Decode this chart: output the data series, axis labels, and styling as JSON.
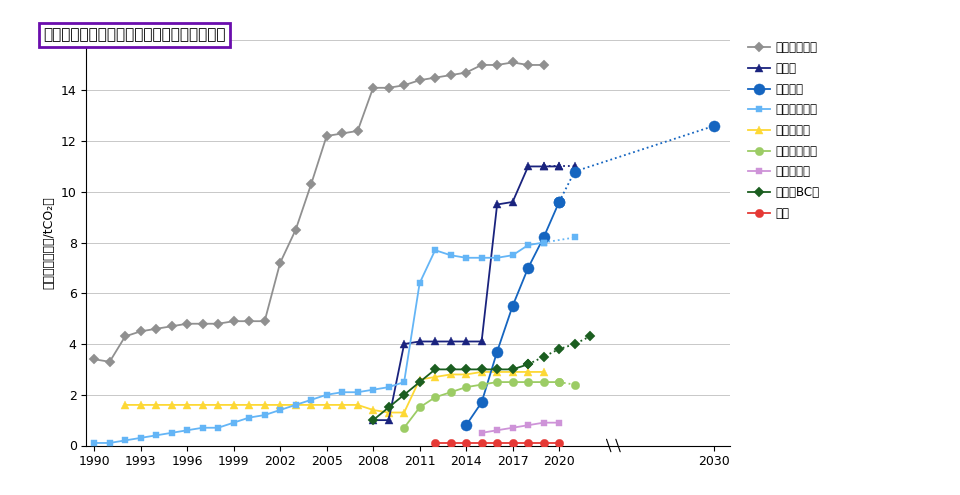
{
  "title": "主な炭素税導入国の税率推移及び将来見通し",
  "ylabel": "炭素税率（千円/tCO₂）",
  "xlabel_years": [
    1990,
    1993,
    1996,
    1999,
    2002,
    2005,
    2008,
    2011,
    2014,
    2017,
    2020,
    2030
  ],
  "ylim": [
    0,
    16
  ],
  "xlim": [
    1989.5,
    2031
  ],
  "sweden": {
    "label": "スウェーデン",
    "color": "#909090",
    "marker": "D",
    "linestyle": "-",
    "markersize": 5,
    "data": [
      [
        1990,
        3.4
      ],
      [
        1991,
        3.3
      ],
      [
        1992,
        4.3
      ],
      [
        1993,
        4.5
      ],
      [
        1994,
        4.6
      ],
      [
        1995,
        4.7
      ],
      [
        1996,
        4.8
      ],
      [
        1997,
        4.8
      ],
      [
        1998,
        4.8
      ],
      [
        1999,
        4.9
      ],
      [
        2000,
        4.9
      ],
      [
        2001,
        4.9
      ],
      [
        2002,
        7.2
      ],
      [
        2003,
        8.5
      ],
      [
        2004,
        10.3
      ],
      [
        2005,
        12.2
      ],
      [
        2006,
        12.3
      ],
      [
        2007,
        12.4
      ],
      [
        2008,
        14.1
      ],
      [
        2009,
        14.1
      ],
      [
        2010,
        14.2
      ],
      [
        2011,
        14.4
      ],
      [
        2012,
        14.5
      ],
      [
        2013,
        14.6
      ],
      [
        2014,
        14.7
      ],
      [
        2015,
        15.0
      ],
      [
        2016,
        15.0
      ],
      [
        2017,
        15.1
      ],
      [
        2018,
        15.0
      ],
      [
        2019,
        15.0
      ]
    ]
  },
  "switzerland": {
    "label": "スイス",
    "color": "#1a237e",
    "marker": "^",
    "linestyle": "-",
    "markersize": 6,
    "data": [
      [
        2008,
        1.0
      ],
      [
        2009,
        1.0
      ],
      [
        2010,
        4.0
      ],
      [
        2011,
        4.1
      ],
      [
        2012,
        4.1
      ],
      [
        2013,
        4.1
      ],
      [
        2014,
        4.1
      ],
      [
        2015,
        4.1
      ],
      [
        2016,
        9.5
      ],
      [
        2017,
        9.6
      ],
      [
        2018,
        11.0
      ],
      [
        2019,
        11.0
      ],
      [
        2020,
        11.0
      ]
    ]
  },
  "switzerland_proj": {
    "color": "#1a237e",
    "marker": "^",
    "linestyle": ":",
    "markersize": 6,
    "data": [
      [
        2019,
        11.0
      ],
      [
        2020,
        11.0
      ],
      [
        2021,
        11.0
      ]
    ]
  },
  "france": {
    "label": "フランス",
    "color": "#1565c0",
    "marker": "o",
    "linestyle": "-",
    "markersize": 8,
    "data": [
      [
        2014,
        0.8
      ],
      [
        2015,
        1.7
      ],
      [
        2016,
        3.7
      ],
      [
        2017,
        5.5
      ],
      [
        2018,
        7.0
      ],
      [
        2019,
        8.2
      ],
      [
        2020,
        9.6
      ]
    ]
  },
  "france_proj": {
    "color": "#1565c0",
    "marker": "o",
    "linestyle": ":",
    "markersize": 8,
    "data": [
      [
        2020,
        9.6
      ],
      [
        2021,
        10.8
      ],
      [
        2030,
        12.6
      ]
    ]
  },
  "finland": {
    "label": "フィンランド",
    "color": "#64b5f6",
    "marker": "s",
    "linestyle": "-",
    "markersize": 5,
    "data": [
      [
        1990,
        0.1
      ],
      [
        1991,
        0.1
      ],
      [
        1992,
        0.2
      ],
      [
        1993,
        0.3
      ],
      [
        1994,
        0.4
      ],
      [
        1995,
        0.5
      ],
      [
        1996,
        0.6
      ],
      [
        1997,
        0.7
      ],
      [
        1998,
        0.7
      ],
      [
        1999,
        0.9
      ],
      [
        2000,
        1.1
      ],
      [
        2001,
        1.2
      ],
      [
        2002,
        1.4
      ],
      [
        2003,
        1.6
      ],
      [
        2004,
        1.8
      ],
      [
        2005,
        2.0
      ],
      [
        2006,
        2.1
      ],
      [
        2007,
        2.1
      ],
      [
        2008,
        2.2
      ],
      [
        2009,
        2.3
      ],
      [
        2010,
        2.5
      ],
      [
        2011,
        6.4
      ],
      [
        2012,
        7.7
      ],
      [
        2013,
        7.5
      ],
      [
        2014,
        7.4
      ],
      [
        2015,
        7.4
      ],
      [
        2016,
        7.4
      ],
      [
        2017,
        7.5
      ],
      [
        2018,
        7.9
      ],
      [
        2019,
        8.0
      ]
    ]
  },
  "finland_proj": {
    "color": "#64b5f6",
    "marker": "s",
    "linestyle": ":",
    "markersize": 5,
    "data": [
      [
        2019,
        8.0
      ],
      [
        2021,
        8.2
      ]
    ]
  },
  "denmark": {
    "label": "デンマーク",
    "color": "#fdd835",
    "marker": "^",
    "linestyle": "-",
    "markersize": 6,
    "data": [
      [
        1992,
        1.6
      ],
      [
        1993,
        1.6
      ],
      [
        1994,
        1.6
      ],
      [
        1995,
        1.6
      ],
      [
        1996,
        1.6
      ],
      [
        1997,
        1.6
      ],
      [
        1998,
        1.6
      ],
      [
        1999,
        1.6
      ],
      [
        2000,
        1.6
      ],
      [
        2001,
        1.6
      ],
      [
        2002,
        1.6
      ],
      [
        2003,
        1.6
      ],
      [
        2004,
        1.6
      ],
      [
        2005,
        1.6
      ],
      [
        2006,
        1.6
      ],
      [
        2007,
        1.6
      ],
      [
        2008,
        1.4
      ],
      [
        2009,
        1.3
      ],
      [
        2010,
        1.3
      ],
      [
        2011,
        2.6
      ],
      [
        2012,
        2.7
      ],
      [
        2013,
        2.8
      ],
      [
        2014,
        2.8
      ],
      [
        2015,
        2.9
      ],
      [
        2016,
        2.9
      ],
      [
        2017,
        2.9
      ],
      [
        2018,
        2.9
      ],
      [
        2019,
        2.9
      ]
    ]
  },
  "ireland": {
    "label": "アイルランド",
    "color": "#9ccc65",
    "marker": "o",
    "linestyle": "-",
    "markersize": 6,
    "data": [
      [
        2010,
        0.7
      ],
      [
        2011,
        1.5
      ],
      [
        2012,
        1.9
      ],
      [
        2013,
        2.1
      ],
      [
        2014,
        2.3
      ],
      [
        2015,
        2.4
      ],
      [
        2016,
        2.5
      ],
      [
        2017,
        2.5
      ],
      [
        2018,
        2.5
      ],
      [
        2019,
        2.5
      ],
      [
        2020,
        2.5
      ]
    ]
  },
  "ireland_proj": {
    "color": "#9ccc65",
    "marker": "o",
    "linestyle": ":",
    "markersize": 6,
    "data": [
      [
        2020,
        2.5
      ],
      [
        2021,
        2.4
      ]
    ]
  },
  "portugal": {
    "label": "ポルトガル",
    "color": "#ce93d8",
    "marker": "s",
    "linestyle": "-",
    "markersize": 5,
    "data": [
      [
        2015,
        0.5
      ],
      [
        2016,
        0.6
      ],
      [
        2017,
        0.7
      ],
      [
        2018,
        0.8
      ],
      [
        2019,
        0.9
      ],
      [
        2020,
        0.9
      ]
    ]
  },
  "canada_bc": {
    "label": "カナダBC州",
    "color": "#1b5e20",
    "marker": "D",
    "linestyle": "-",
    "markersize": 5,
    "data": [
      [
        2008,
        1.0
      ],
      [
        2009,
        1.5
      ],
      [
        2010,
        2.0
      ],
      [
        2011,
        2.5
      ],
      [
        2012,
        3.0
      ],
      [
        2013,
        3.0
      ],
      [
        2014,
        3.0
      ],
      [
        2015,
        3.0
      ],
      [
        2016,
        3.0
      ],
      [
        2017,
        3.0
      ],
      [
        2018,
        3.2
      ]
    ]
  },
  "canada_bc_proj": {
    "color": "#1b5e20",
    "marker": "D",
    "linestyle": ":",
    "markersize": 5,
    "data": [
      [
        2018,
        3.2
      ],
      [
        2019,
        3.5
      ],
      [
        2020,
        3.8
      ],
      [
        2021,
        4.0
      ],
      [
        2022,
        4.3
      ]
    ]
  },
  "japan": {
    "label": "日本",
    "color": "#e53935",
    "marker": "o",
    "linestyle": "-",
    "markersize": 6,
    "data": [
      [
        2012,
        0.1
      ],
      [
        2013,
        0.1
      ],
      [
        2014,
        0.1
      ],
      [
        2015,
        0.1
      ],
      [
        2016,
        0.1
      ],
      [
        2017,
        0.1
      ],
      [
        2018,
        0.1
      ],
      [
        2019,
        0.1
      ],
      [
        2020,
        0.1
      ]
    ]
  },
  "background_color": "#ffffff",
  "grid_color": "#c8c8c8",
  "title_box_color": "#6a0dad"
}
